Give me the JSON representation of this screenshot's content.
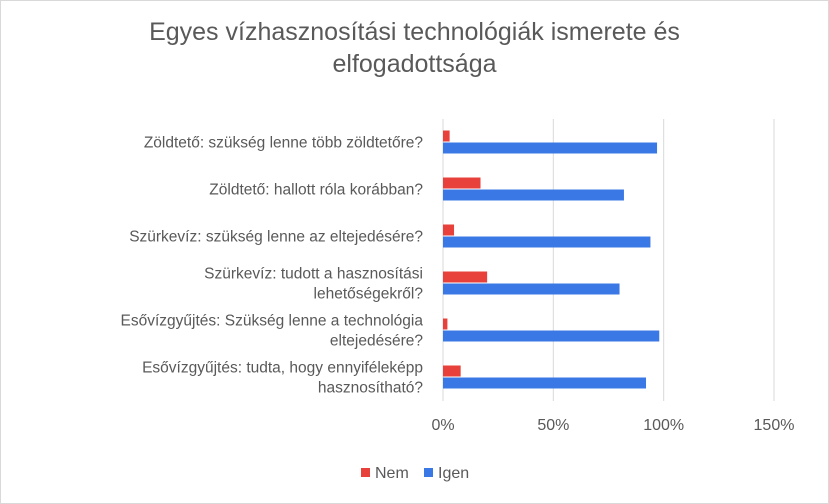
{
  "chart_data": {
    "type": "bar",
    "orientation": "horizontal",
    "title_lines": [
      "Egyes vízhasznosítási technológiák ismerete és",
      "elfogadottsága"
    ],
    "categories": [
      [
        "Zöldtető: szükség lenne több zöldtetőre?"
      ],
      [
        "Zöldtető: hallott róla korábban?"
      ],
      [
        "Szürkevíz: szükség lenne az eltejedésére?"
      ],
      [
        "Szürkevíz: tudott a hasznosítási",
        "lehetőségekről?"
      ],
      [
        "Esővízgyűjtés: Szükség lenne a technológia",
        "eltejedésére?"
      ],
      [
        "Esővízgyűjtés: tudta, hogy ennyiféleképp",
        "hasznosítható?"
      ]
    ],
    "series": [
      {
        "name": "Nem",
        "color": "#e8403b",
        "values": [
          0.03,
          0.17,
          0.05,
          0.2,
          0.02,
          0.08
        ]
      },
      {
        "name": "Igen",
        "color": "#3a78e6",
        "values": [
          0.97,
          0.82,
          0.94,
          0.8,
          0.98,
          0.92
        ]
      }
    ],
    "xlim": [
      0,
      1.5
    ],
    "x_ticks": [
      0,
      0.5,
      1.0,
      1.5
    ],
    "x_tick_labels": [
      "0%",
      "50%",
      "100%",
      "150%"
    ],
    "gridlines": "vertical",
    "legend_position": "bottom"
  }
}
